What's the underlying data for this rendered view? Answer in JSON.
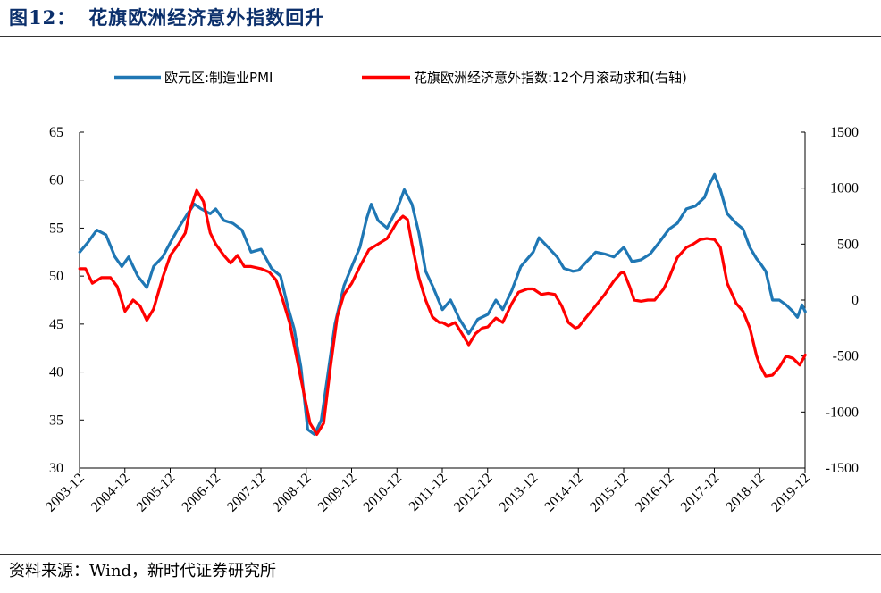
{
  "header": {
    "figure_no": "图12：",
    "title": "花旗欧洲经济意外指数回升"
  },
  "footer": {
    "source": "资料来源：Wind，新时代证券研究所"
  },
  "chart_data": {
    "type": "line",
    "x_tick_labels": [
      "2003-12",
      "2004-12",
      "2005-12",
      "2006-12",
      "2007-12",
      "2008-12",
      "2009-12",
      "2010-12",
      "2011-12",
      "2012-12",
      "2013-12",
      "2014-12",
      "2015-12",
      "2016-12",
      "2017-12",
      "2018-12",
      "2019-12"
    ],
    "x_range": [
      2003.917,
      2019.917
    ],
    "y_left": {
      "range": [
        30,
        65
      ],
      "ticks": [
        "30",
        "35",
        "40",
        "45",
        "50",
        "55",
        "60",
        "65"
      ]
    },
    "y_right": {
      "range": [
        -1500,
        1500
      ],
      "ticks": [
        "-1500",
        "-1000",
        "-500",
        "0",
        "500",
        "1000",
        "1500"
      ]
    },
    "series": [
      {
        "name": "欧元区:制造业PMI",
        "axis": "left",
        "color": "#1f77b4",
        "points": [
          [
            2003.92,
            52.5
          ],
          [
            2004.1,
            53.5
          ],
          [
            2004.3,
            54.8
          ],
          [
            2004.5,
            54.3
          ],
          [
            2004.7,
            52.0
          ],
          [
            2004.85,
            51.0
          ],
          [
            2005.0,
            52.0
          ],
          [
            2005.2,
            50.0
          ],
          [
            2005.4,
            48.8
          ],
          [
            2005.55,
            51.0
          ],
          [
            2005.75,
            52.0
          ],
          [
            2005.92,
            53.5
          ],
          [
            2006.1,
            55.0
          ],
          [
            2006.3,
            56.5
          ],
          [
            2006.45,
            57.5
          ],
          [
            2006.6,
            57.0
          ],
          [
            2006.8,
            56.5
          ],
          [
            2006.92,
            57.0
          ],
          [
            2007.1,
            55.8
          ],
          [
            2007.3,
            55.5
          ],
          [
            2007.5,
            54.8
          ],
          [
            2007.7,
            52.5
          ],
          [
            2007.92,
            52.8
          ],
          [
            2008.15,
            50.8
          ],
          [
            2008.35,
            50.0
          ],
          [
            2008.5,
            47.0
          ],
          [
            2008.65,
            44.5
          ],
          [
            2008.8,
            40.5
          ],
          [
            2008.95,
            34.0
          ],
          [
            2009.1,
            33.5
          ],
          [
            2009.25,
            35.0
          ],
          [
            2009.4,
            40.0
          ],
          [
            2009.55,
            45.0
          ],
          [
            2009.75,
            49.0
          ],
          [
            2009.92,
            51.0
          ],
          [
            2010.1,
            53.0
          ],
          [
            2010.25,
            56.0
          ],
          [
            2010.35,
            57.5
          ],
          [
            2010.5,
            55.8
          ],
          [
            2010.7,
            55.0
          ],
          [
            2010.92,
            57.0
          ],
          [
            2011.08,
            59.0
          ],
          [
            2011.25,
            57.5
          ],
          [
            2011.4,
            54.5
          ],
          [
            2011.55,
            50.5
          ],
          [
            2011.7,
            49.0
          ],
          [
            2011.92,
            46.5
          ],
          [
            2012.1,
            47.5
          ],
          [
            2012.3,
            45.5
          ],
          [
            2012.5,
            44.0
          ],
          [
            2012.7,
            45.5
          ],
          [
            2012.92,
            46.0
          ],
          [
            2013.1,
            47.5
          ],
          [
            2013.25,
            46.5
          ],
          [
            2013.45,
            48.5
          ],
          [
            2013.65,
            51.0
          ],
          [
            2013.92,
            52.5
          ],
          [
            2014.05,
            54.0
          ],
          [
            2014.25,
            53.0
          ],
          [
            2014.45,
            52.0
          ],
          [
            2014.6,
            50.8
          ],
          [
            2014.8,
            50.5
          ],
          [
            2014.92,
            50.6
          ],
          [
            2015.1,
            51.5
          ],
          [
            2015.3,
            52.5
          ],
          [
            2015.5,
            52.3
          ],
          [
            2015.7,
            52.0
          ],
          [
            2015.92,
            53.0
          ],
          [
            2016.1,
            51.5
          ],
          [
            2016.3,
            51.7
          ],
          [
            2016.5,
            52.3
          ],
          [
            2016.7,
            53.5
          ],
          [
            2016.92,
            54.9
          ],
          [
            2017.1,
            55.5
          ],
          [
            2017.3,
            57.0
          ],
          [
            2017.5,
            57.3
          ],
          [
            2017.7,
            58.2
          ],
          [
            2017.8,
            59.5
          ],
          [
            2017.92,
            60.6
          ],
          [
            2018.05,
            59.0
          ],
          [
            2018.2,
            56.5
          ],
          [
            2018.4,
            55.5
          ],
          [
            2018.55,
            54.9
          ],
          [
            2018.7,
            53.0
          ],
          [
            2018.85,
            51.8
          ],
          [
            2018.92,
            51.4
          ],
          [
            2019.05,
            50.5
          ],
          [
            2019.2,
            47.5
          ],
          [
            2019.35,
            47.5
          ],
          [
            2019.5,
            47.0
          ],
          [
            2019.65,
            46.3
          ],
          [
            2019.75,
            45.7
          ],
          [
            2019.85,
            47.0
          ],
          [
            2019.92,
            46.3
          ]
        ]
      },
      {
        "name": "花旗欧洲经济意外指数:12个月滚动求和(右轴)",
        "axis": "right",
        "color": "#ff0000",
        "points": [
          [
            2003.92,
            280
          ],
          [
            2004.05,
            280
          ],
          [
            2004.2,
            150
          ],
          [
            2004.4,
            200
          ],
          [
            2004.6,
            200
          ],
          [
            2004.75,
            120
          ],
          [
            2004.92,
            -100
          ],
          [
            2005.1,
            0
          ],
          [
            2005.25,
            -50
          ],
          [
            2005.4,
            -180
          ],
          [
            2005.55,
            -80
          ],
          [
            2005.75,
            200
          ],
          [
            2005.92,
            400
          ],
          [
            2006.1,
            500
          ],
          [
            2006.25,
            600
          ],
          [
            2006.35,
            800
          ],
          [
            2006.5,
            980
          ],
          [
            2006.65,
            880
          ],
          [
            2006.8,
            600
          ],
          [
            2006.92,
            500
          ],
          [
            2007.1,
            400
          ],
          [
            2007.25,
            330
          ],
          [
            2007.4,
            400
          ],
          [
            2007.55,
            300
          ],
          [
            2007.7,
            300
          ],
          [
            2007.92,
            280
          ],
          [
            2008.1,
            250
          ],
          [
            2008.25,
            180
          ],
          [
            2008.4,
            0
          ],
          [
            2008.55,
            -200
          ],
          [
            2008.7,
            -500
          ],
          [
            2008.85,
            -800
          ],
          [
            2009.0,
            -1100
          ],
          [
            2009.15,
            -1200
          ],
          [
            2009.3,
            -1100
          ],
          [
            2009.45,
            -600
          ],
          [
            2009.6,
            -150
          ],
          [
            2009.75,
            50
          ],
          [
            2009.92,
            150
          ],
          [
            2010.1,
            300
          ],
          [
            2010.3,
            450
          ],
          [
            2010.5,
            500
          ],
          [
            2010.7,
            550
          ],
          [
            2010.85,
            650
          ],
          [
            2010.92,
            700
          ],
          [
            2011.05,
            750
          ],
          [
            2011.15,
            720
          ],
          [
            2011.25,
            500
          ],
          [
            2011.4,
            200
          ],
          [
            2011.55,
            0
          ],
          [
            2011.7,
            -150
          ],
          [
            2011.85,
            -200
          ],
          [
            2011.92,
            -200
          ],
          [
            2012.05,
            -230
          ],
          [
            2012.2,
            -200
          ],
          [
            2012.35,
            -300
          ],
          [
            2012.5,
            -400
          ],
          [
            2012.65,
            -300
          ],
          [
            2012.8,
            -250
          ],
          [
            2012.92,
            -240
          ],
          [
            2013.1,
            -160
          ],
          [
            2013.25,
            -200
          ],
          [
            2013.45,
            -30
          ],
          [
            2013.6,
            70
          ],
          [
            2013.8,
            100
          ],
          [
            2013.92,
            100
          ],
          [
            2014.1,
            50
          ],
          [
            2014.25,
            60
          ],
          [
            2014.4,
            50
          ],
          [
            2014.55,
            -50
          ],
          [
            2014.7,
            -200
          ],
          [
            2014.85,
            -250
          ],
          [
            2014.92,
            -240
          ],
          [
            2015.1,
            -150
          ],
          [
            2015.3,
            -50
          ],
          [
            2015.5,
            50
          ],
          [
            2015.7,
            170
          ],
          [
            2015.85,
            240
          ],
          [
            2015.92,
            250
          ],
          [
            2016.05,
            120
          ],
          [
            2016.15,
            0
          ],
          [
            2016.3,
            -10
          ],
          [
            2016.45,
            0
          ],
          [
            2016.6,
            0
          ],
          [
            2016.8,
            100
          ],
          [
            2016.92,
            200
          ],
          [
            2017.1,
            380
          ],
          [
            2017.3,
            470
          ],
          [
            2017.45,
            500
          ],
          [
            2017.6,
            540
          ],
          [
            2017.75,
            550
          ],
          [
            2017.92,
            540
          ],
          [
            2018.05,
            470
          ],
          [
            2018.2,
            150
          ],
          [
            2018.4,
            -30
          ],
          [
            2018.55,
            -100
          ],
          [
            2018.7,
            -250
          ],
          [
            2018.85,
            -500
          ],
          [
            2018.92,
            -580
          ],
          [
            2019.05,
            -680
          ],
          [
            2019.2,
            -670
          ],
          [
            2019.35,
            -600
          ],
          [
            2019.5,
            -500
          ],
          [
            2019.65,
            -520
          ],
          [
            2019.8,
            -580
          ],
          [
            2019.92,
            -490
          ]
        ]
      }
    ]
  }
}
